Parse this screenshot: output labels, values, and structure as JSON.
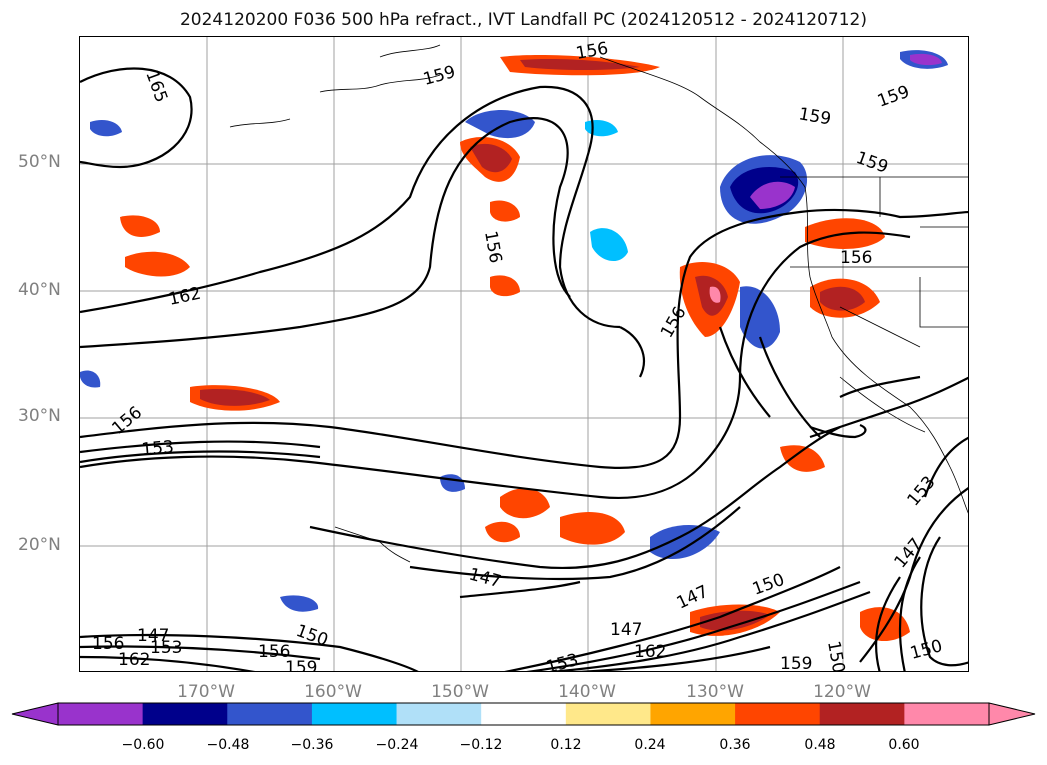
{
  "title": "2024120200 F036 500 hPa refract., IVT Landfall PC (2024120512 - 2024120712)",
  "lat_labels": [
    "50°N",
    "40°N",
    "30°N",
    "20°N"
  ],
  "lon_labels": [
    "170°W",
    "160°W",
    "150°W",
    "140°W",
    "130°W",
    "120°W"
  ],
  "contour_labels": [
    "165",
    "159",
    "156",
    "159",
    "159",
    "156",
    "162",
    "156",
    "153",
    "156",
    "156",
    "147",
    "147",
    "150",
    "153",
    "147",
    "150",
    "147",
    "159",
    "162",
    "153",
    "156",
    "162",
    "159",
    "150",
    "159",
    "150",
    "156",
    "153",
    "147"
  ],
  "colorbar": {
    "ticks": [
      "−0.60",
      "−0.48",
      "−0.36",
      "−0.24",
      "−0.12",
      "0.12",
      "0.24",
      "0.36",
      "0.48",
      "0.60"
    ],
    "colors": [
      "#9933cc",
      "#00008b",
      "#3355cc",
      "#00bfff",
      "#b0e0f8",
      "#ffffff",
      "#ffe88a",
      "#ffa500",
      "#ff4500",
      "#b22222",
      "#ff88aa"
    ]
  }
}
